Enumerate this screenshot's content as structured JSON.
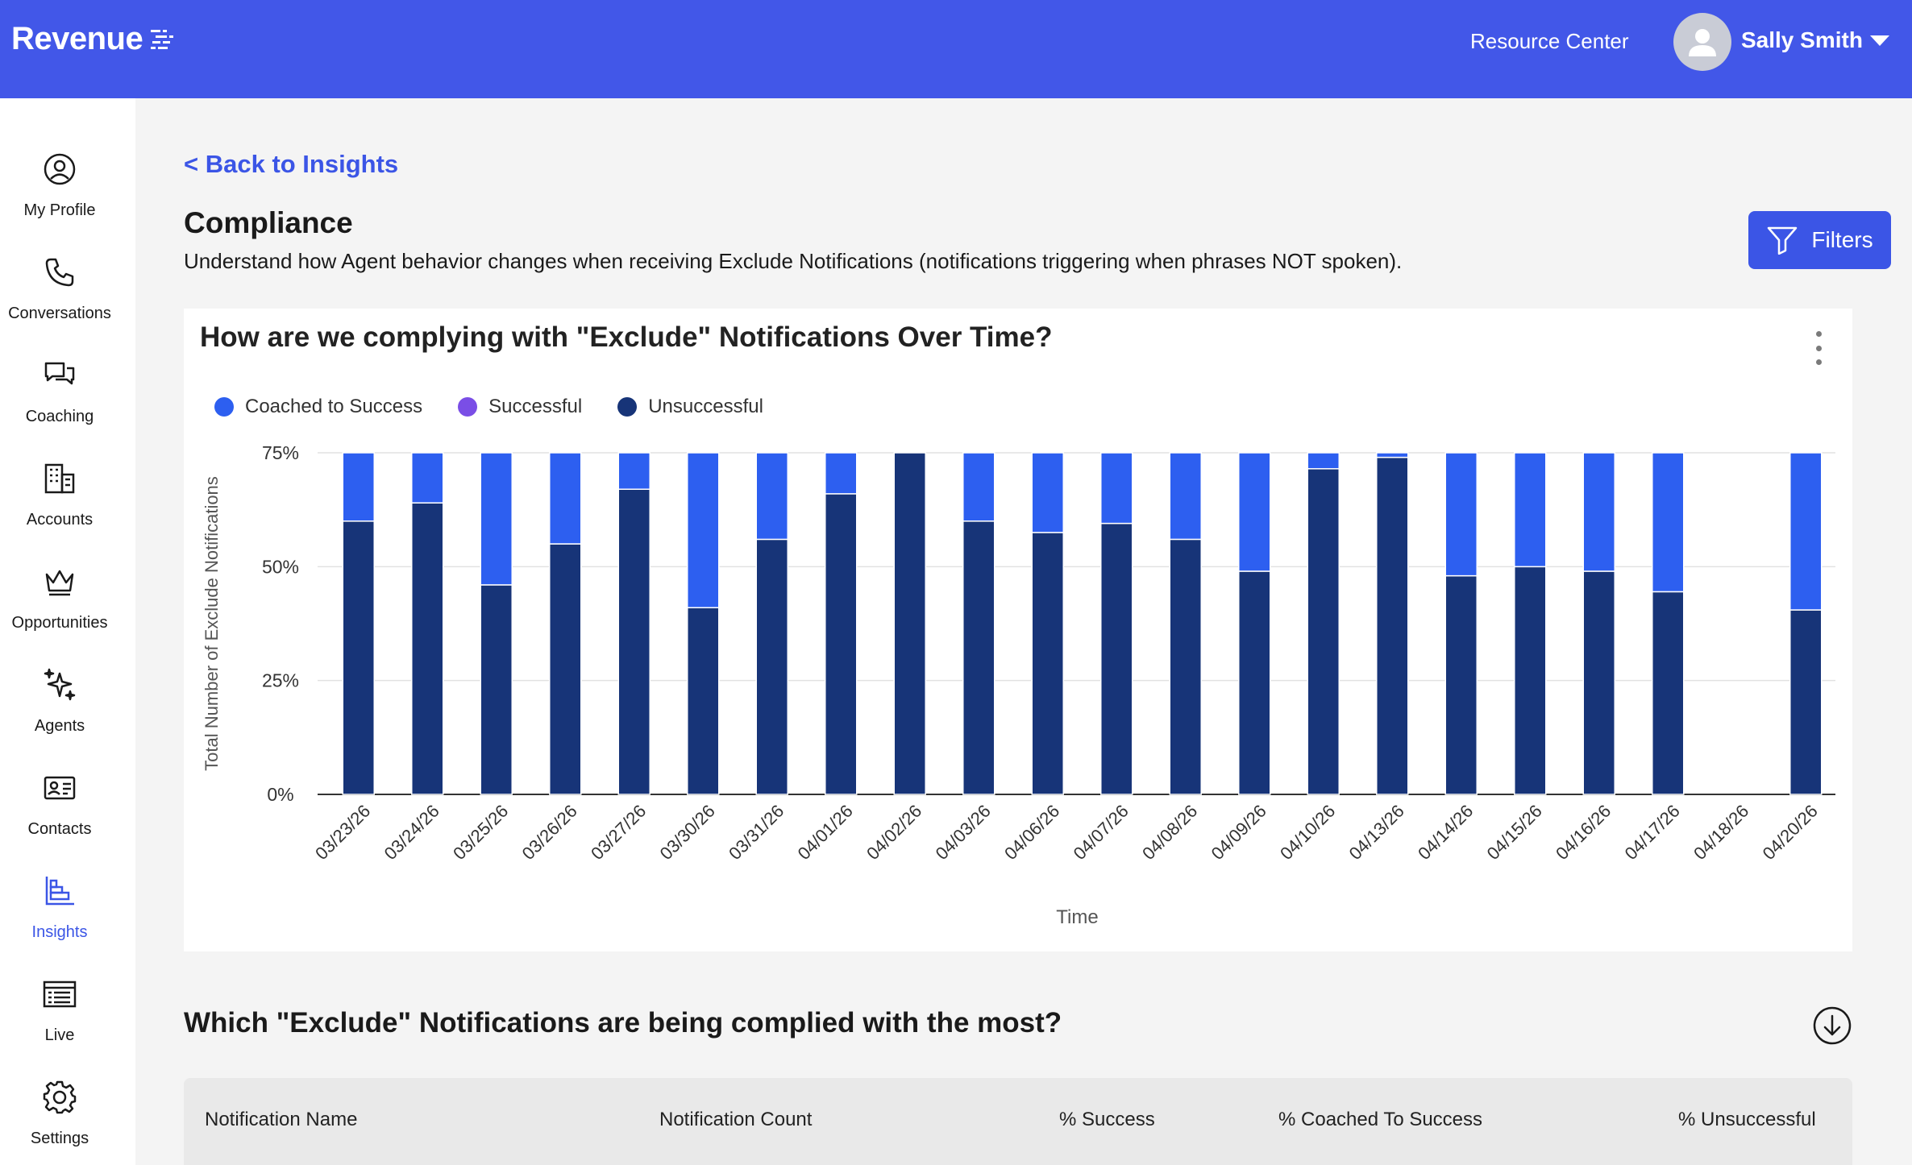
{
  "app": {
    "logo_text": "Revenue"
  },
  "header": {
    "resource_center": "Resource Center",
    "user_name": "Sally Smith"
  },
  "sidebar": {
    "items": [
      {
        "label": "My Profile",
        "icon": "user-circle-icon"
      },
      {
        "label": "Conversations",
        "icon": "phone-icon"
      },
      {
        "label": "Coaching",
        "icon": "chat-bubbles-icon"
      },
      {
        "label": "Accounts",
        "icon": "building-icon"
      },
      {
        "label": "Opportunities",
        "icon": "crown-icon"
      },
      {
        "label": "Agents",
        "icon": "sparkles-icon"
      },
      {
        "label": "Contacts",
        "icon": "id-card-icon"
      },
      {
        "label": "Insights",
        "icon": "bar-chart-icon",
        "active": true
      },
      {
        "label": "Live",
        "icon": "live-list-icon"
      },
      {
        "label": "Settings",
        "icon": "gear-icon"
      }
    ]
  },
  "page": {
    "back_link": "< Back to Insights",
    "title": "Compliance",
    "subtitle": "Understand how Agent behavior changes when receiving Exclude Notifications (notifications triggering when phrases NOT spoken).",
    "filters_label": "Filters"
  },
  "card": {
    "title": "How are we complying with \"Exclude\" Notifications Over Time?"
  },
  "colors": {
    "accent": "#3b55e6",
    "coached": "#2d5ff0",
    "successful": "#7a4ee6",
    "unsuccessful": "#173478"
  },
  "chart_data": {
    "type": "bar",
    "stacked": true,
    "title": "How are we complying with \"Exclude\" Notifications Over Time?",
    "xlabel": "Time",
    "ylabel": "Total Number of Exclude Notifications",
    "ylim": [
      0,
      75
    ],
    "yticks": [
      "0%",
      "25%",
      "50%",
      "75%"
    ],
    "grid": true,
    "legend_position": "top-left",
    "categories": [
      "03/23/26",
      "03/24/26",
      "03/25/26",
      "03/26/26",
      "03/27/26",
      "03/30/26",
      "03/31/26",
      "04/01/26",
      "04/02/26",
      "04/03/26",
      "04/06/26",
      "04/07/26",
      "04/08/26",
      "04/09/26",
      "04/10/26",
      "04/13/26",
      "04/14/26",
      "04/15/26",
      "04/16/26",
      "04/17/26",
      "04/18/26",
      "04/20/26"
    ],
    "series": [
      {
        "name": "Unsuccessful",
        "values": [
          60,
          64,
          46,
          55,
          67,
          41,
          56,
          66,
          75,
          60,
          57.5,
          59.5,
          56,
          49,
          71.5,
          74,
          48,
          50,
          49,
          44.5,
          0,
          40.5
        ]
      },
      {
        "name": "Successful",
        "values": [
          0,
          0,
          0,
          0,
          0,
          0,
          0,
          0,
          0,
          0,
          0,
          0,
          0,
          0,
          0,
          0,
          0,
          0,
          0,
          0,
          0,
          0
        ]
      },
      {
        "name": "Coached to Success",
        "values": [
          15,
          11,
          29,
          20,
          8,
          34,
          19,
          9,
          0,
          15,
          17.5,
          15.5,
          19,
          26,
          3.5,
          1,
          27,
          25,
          26,
          30.5,
          0,
          34.5
        ]
      }
    ],
    "legend": [
      "Coached to Success",
      "Successful",
      "Unsuccessful"
    ]
  },
  "section": {
    "title": "Which \"Exclude\" Notifications are being complied with the most?"
  },
  "table": {
    "columns": [
      "Notification Name",
      "Notification Count",
      "% Success",
      "% Coached To Success",
      "% Unsuccessful"
    ]
  }
}
